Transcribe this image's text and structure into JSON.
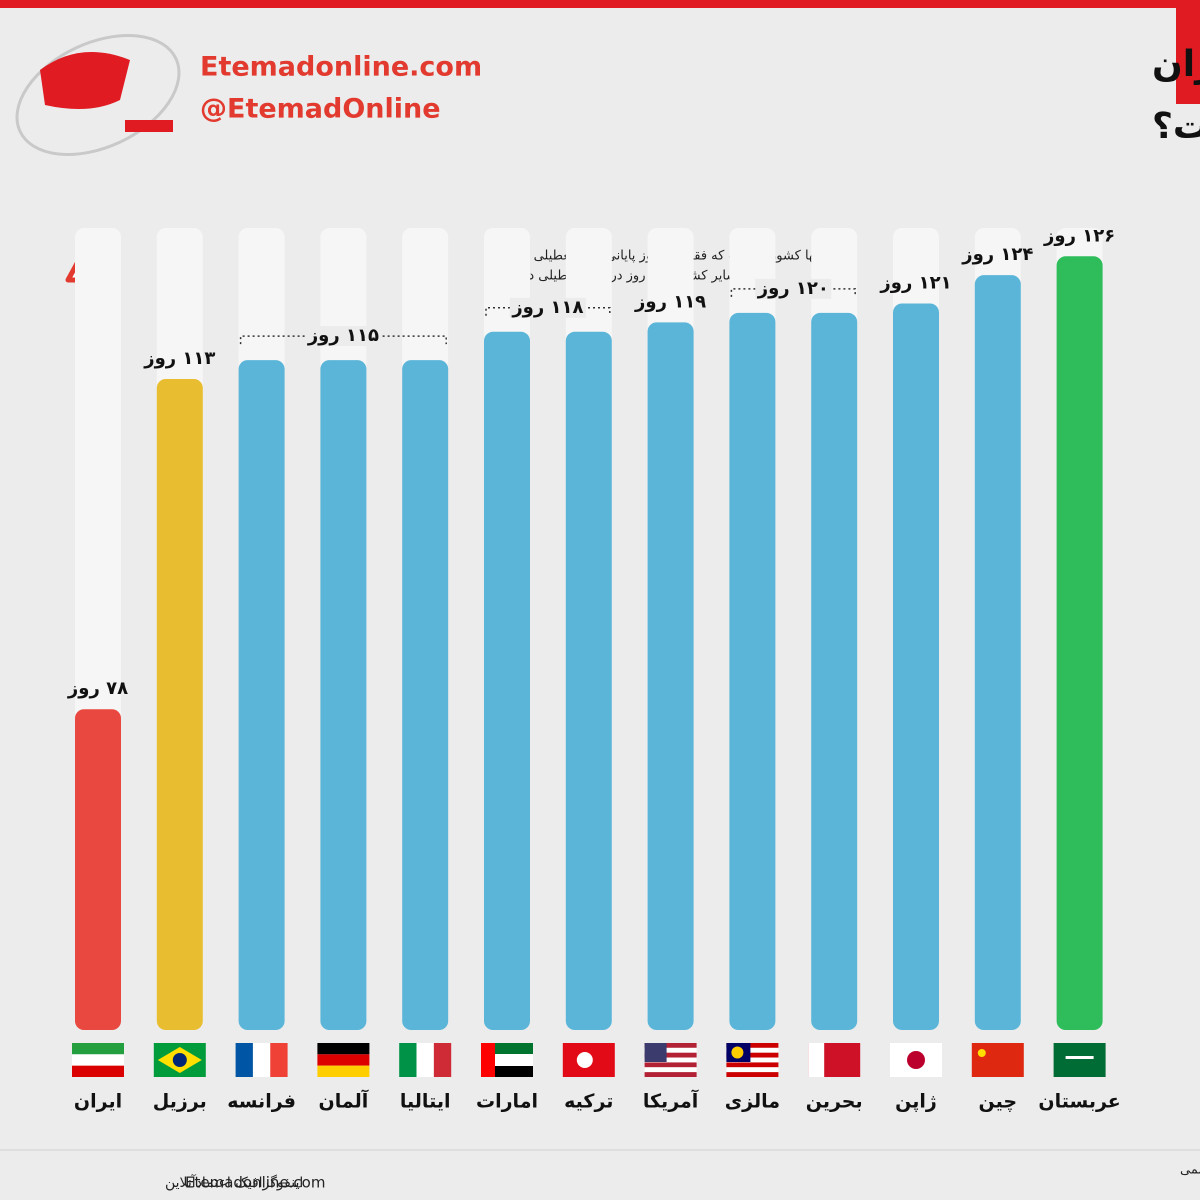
{
  "header": {
    "site": "Etemadonline.com",
    "handle": "@EtemadOnline"
  },
  "chart_data": {
    "type": "bar",
    "title": [
      "تعداد روزهای تعطیل در ایران",
      "و سایر کشورها چقدر است؟"
    ],
    "annotation": [
      "ایران تنها کشوری است که فقط یک روز پایانی هفته تعطیلی دارد",
      "سایر کشورها دو روز در هفته تعطیلی دارند"
    ],
    "categories": [
      "ایران",
      "برزیل",
      "فرانسه",
      "آلمان",
      "ایتالیا",
      "امارات",
      "ترکیه",
      "آمریکا",
      "مالزی",
      "بحرین",
      "ژاپن",
      "چین",
      "عربستان"
    ],
    "values": [
      78,
      113,
      115,
      115,
      115,
      118,
      118,
      119,
      120,
      120,
      121,
      124,
      126
    ],
    "value_labels": [
      "۷۸ روز",
      "۱۱۳ روز",
      null,
      "۱۱۵ روز",
      null,
      "۱۱۸ روز",
      null,
      "۱۱۹ روز",
      "۱۲۰ روز",
      null,
      "۱۲۱ روز",
      "۱۲۴ روز",
      "۱۲۶ روز"
    ],
    "colors": [
      "#e8483f",
      "#e9bd30",
      "#5bb5d8",
      "#5bb5d8",
      "#5bb5d8",
      "#5bb5d8",
      "#5bb5d8",
      "#5bb5d8",
      "#5bb5d8",
      "#5bb5d8",
      "#5bb5d8",
      "#5bb5d8",
      "#2fbd5c"
    ],
    "ylim": [
      44,
      129
    ]
  },
  "footer": {
    "source": "منبع: دنیای اقتصاد / براساس جمع تعطیلات پایانی هفته و تعطیلات رسمی",
    "credit": "اینفوگرافیک اعتمادآنلاین",
    "site": "Etemadonline.com"
  }
}
